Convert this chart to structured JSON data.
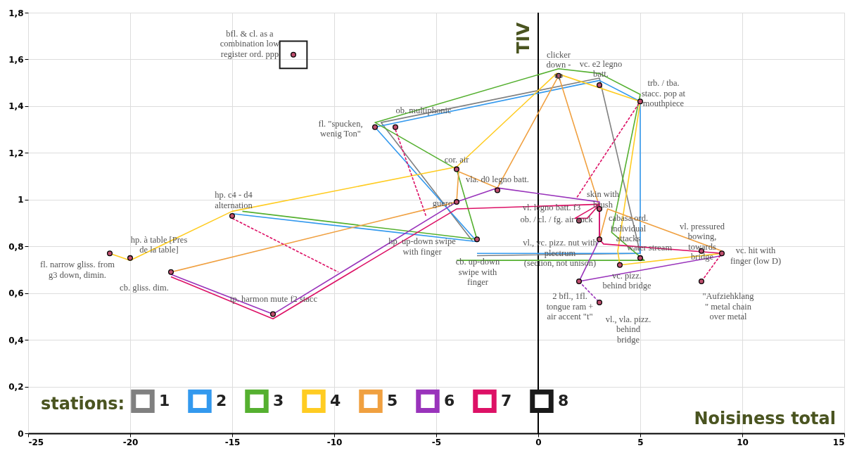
{
  "chart_data": {
    "type": "scatter",
    "xlabel": "Noisiness total",
    "ylabel": "TIV",
    "legend_title": "stations:",
    "legend": "bottom left",
    "grid": true,
    "xlim": [
      -25,
      15
    ],
    "xticks": [
      -25,
      -20,
      -15,
      -10,
      -5,
      0,
      5,
      10,
      15
    ],
    "ylim": [
      0,
      1.8
    ],
    "yticks": [
      0,
      {
        "value": 0.2,
        "label": "0,2"
      },
      {
        "value": 0.4,
        "label": "0,4"
      },
      {
        "value": 0.6,
        "label": "0,6"
      },
      {
        "value": 0.8,
        "label": "0,8"
      },
      1,
      {
        "value": 1.2,
        "label": "1,2"
      },
      {
        "value": 1.4,
        "label": "1,4"
      },
      {
        "value": 1.6,
        "label": "1,6"
      },
      {
        "value": 1.8,
        "label": "1,8"
      }
    ],
    "ref_lines": [
      {
        "axis": "x",
        "value": 0,
        "color": "#000000"
      }
    ],
    "series": [
      {
        "marker": "circle",
        "color": "#c04f6f",
        "x": [
          -12,
          -8,
          -7,
          1,
          3,
          5,
          -4,
          -2,
          -4,
          -15,
          -20,
          -21,
          -18,
          -13,
          -3,
          3,
          2,
          3,
          5,
          4,
          8,
          9,
          2,
          3,
          8
        ],
        "values": [
          1.62,
          1.31,
          1.31,
          1.53,
          1.49,
          1.42,
          1.13,
          1.04,
          0.99,
          0.93,
          0.75,
          0.77,
          0.69,
          0.51,
          0.83,
          0.96,
          0.91,
          0.83,
          0.75,
          0.72,
          0.78,
          0.77,
          0.65,
          0.56,
          0.65
        ]
      },
      {
        "name": "1",
        "type": "line",
        "color": "#808080",
        "x": [
          -3.2,
          -7.7,
          3,
          5,
          -3
        ],
        "values": [
          0.82,
          1.33,
          1.52,
          0.77,
          0.76
        ]
      },
      {
        "name": "2",
        "type": "line",
        "color": "#3399ee",
        "x": [
          -15,
          -3,
          -8,
          3,
          5,
          5,
          -3
        ],
        "values": [
          0.94,
          0.82,
          1.31,
          1.51,
          1.42,
          0.77,
          0.77
        ]
      },
      {
        "name": "3",
        "type": "line",
        "color": "#55b030",
        "x": [
          -14.5,
          -3,
          -4,
          -8,
          1,
          3,
          5,
          3.6,
          5.2,
          -4
        ],
        "values": [
          0.95,
          0.83,
          1.13,
          1.33,
          1.56,
          1.54,
          1.45,
          0.86,
          0.74,
          0.74
        ]
      },
      {
        "name": "4",
        "type": "line",
        "color": "#ffcc22",
        "x": [
          -21,
          -20,
          -15,
          -4,
          0.9,
          5,
          3.9,
          4,
          9
        ],
        "values": [
          0.77,
          0.74,
          0.95,
          1.14,
          1.54,
          1.42,
          0.78,
          0.72,
          0.77
        ]
      },
      {
        "name": "5",
        "type": "line",
        "color": "#f0a040",
        "x": [
          -18,
          -4,
          -3.9,
          -2,
          1,
          3,
          3,
          3.4,
          9
        ],
        "values": [
          0.69,
          0.99,
          1.12,
          1.05,
          1.53,
          0.97,
          0.83,
          0.96,
          0.78
        ]
      },
      {
        "name": "6",
        "type": "line",
        "color": "#9933bb",
        "x": [
          -18,
          -13,
          -4,
          -2,
          3,
          3,
          2,
          9
        ],
        "values": [
          0.68,
          0.51,
          0.99,
          1.05,
          0.99,
          0.83,
          0.65,
          0.76
        ]
      },
      {
        "name": "7",
        "type": "line",
        "color": "#dd1166",
        "x": [
          -18,
          -13,
          -4,
          3,
          1.8,
          2.4,
          3,
          3,
          3.2,
          9
        ],
        "values": [
          0.67,
          0.49,
          0.96,
          0.98,
          0.92,
          0.92,
          0.98,
          0.83,
          0.81,
          0.77
        ]
      },
      {
        "name": "8",
        "type": "scatter",
        "marker": "square",
        "color": "#1a1a1a",
        "x": [
          -12
        ],
        "values": [
          1.62
        ]
      },
      {
        "type": "line",
        "line_style": "dashed",
        "color": "#dd1166",
        "x": [
          -15,
          -9.8
        ],
        "values": [
          0.92,
          0.69
        ]
      },
      {
        "type": "line",
        "line_style": "dashed",
        "color": "#dd1166",
        "x": [
          -7,
          -5.5
        ],
        "values": [
          1.3,
          0.93
        ]
      },
      {
        "type": "line",
        "line_style": "dashed",
        "color": "#dd1166",
        "x": [
          1.9,
          5
        ],
        "values": [
          1.01,
          1.42
        ]
      },
      {
        "type": "line",
        "line_style": "dashed",
        "color": "#dd1166",
        "x": [
          8,
          9
        ],
        "values": [
          0.65,
          0.77
        ]
      },
      {
        "type": "line",
        "line_style": "dashed",
        "color": "#9933bb",
        "x": [
          2,
          3
        ],
        "values": [
          0.65,
          0.56
        ]
      }
    ],
    "annotations": [
      {
        "text": "bfl. & cl. as a\ncombination low\nregister ord. ppp",
        "x": -12,
        "y": 1.62
      },
      {
        "text": "fl. \"spucken,\nwenig Ton\"",
        "x": -8,
        "y": 1.31
      },
      {
        "text": "ob. multiphonic",
        "x": -7,
        "y": 1.31
      },
      {
        "text": "clicker\ndown -\nup",
        "x": 1,
        "y": 1.53
      },
      {
        "text": "vc. e2 legno\nbatt.",
        "x": 3,
        "y": 1.49
      },
      {
        "text": "trb. / tba.\nstacc. pop at\nmouthpiece",
        "x": 5,
        "y": 1.42
      },
      {
        "text": "cor. air",
        "x": -4,
        "y": 1.13
      },
      {
        "text": "vla. d0 legno batt.",
        "x": -2,
        "y": 1.04
      },
      {
        "text": "guero",
        "x": -4,
        "y": 0.99
      },
      {
        "text": "hp. c4 - d4\nalternation",
        "x": -15,
        "y": 0.93
      },
      {
        "text": "hp. à table [Pres\nde la table]",
        "x": -20,
        "y": 0.75
      },
      {
        "text": "fl. narrow gliss. from\ng3 down, dimin.",
        "x": -21,
        "y": 0.77
      },
      {
        "text": "cb. gliss. dim.",
        "x": -18,
        "y": 0.69
      },
      {
        "text": "tp. harmon mute f2 stacc",
        "x": -13,
        "y": 0.51
      },
      {
        "text": "hp. up-down swipe\nwith finger",
        "x": -3,
        "y": 0.83
      },
      {
        "text": "cb. up-down\nswipe with\nfinger",
        "x": -3,
        "y": 0.83
      },
      {
        "text": "skin with\nbrush",
        "x": 3,
        "y": 0.96
      },
      {
        "text": "vl. legno batt. f3",
        "x": 3,
        "y": 0.96
      },
      {
        "text": "cabasa ord.\nindividual\nattacks",
        "x": 3,
        "y": 0.96
      },
      {
        "text": "ob. / cl. / fg. air suck",
        "x": 2,
        "y": 0.91
      },
      {
        "text": "vl., vc. pizz. nut with\nplectrum\n(section, not unison)",
        "x": 3,
        "y": 0.83
      },
      {
        "text": "water stream",
        "x": 5,
        "y": 0.75
      },
      {
        "text": "vc. pizz.\nbehind bridge",
        "x": 4,
        "y": 0.72
      },
      {
        "text": "vl. pressured\nbowing,\ntowards\nbridge",
        "x": 8,
        "y": 0.78
      },
      {
        "text": "vc. hit with\nfinger (low D)",
        "x": 9,
        "y": 0.77
      },
      {
        "text": "2 bfl., 1fl.\ntongue ram +\nair accent \"t\"",
        "x": 2,
        "y": 0.65
      },
      {
        "text": "vl., vla.  pizz.\nbehind\nbridge",
        "x": 3,
        "y": 0.56
      },
      {
        "text": "\"Aufziehklang\n\" metal chain\nover metal",
        "x": 8,
        "y": 0.65
      }
    ]
  }
}
